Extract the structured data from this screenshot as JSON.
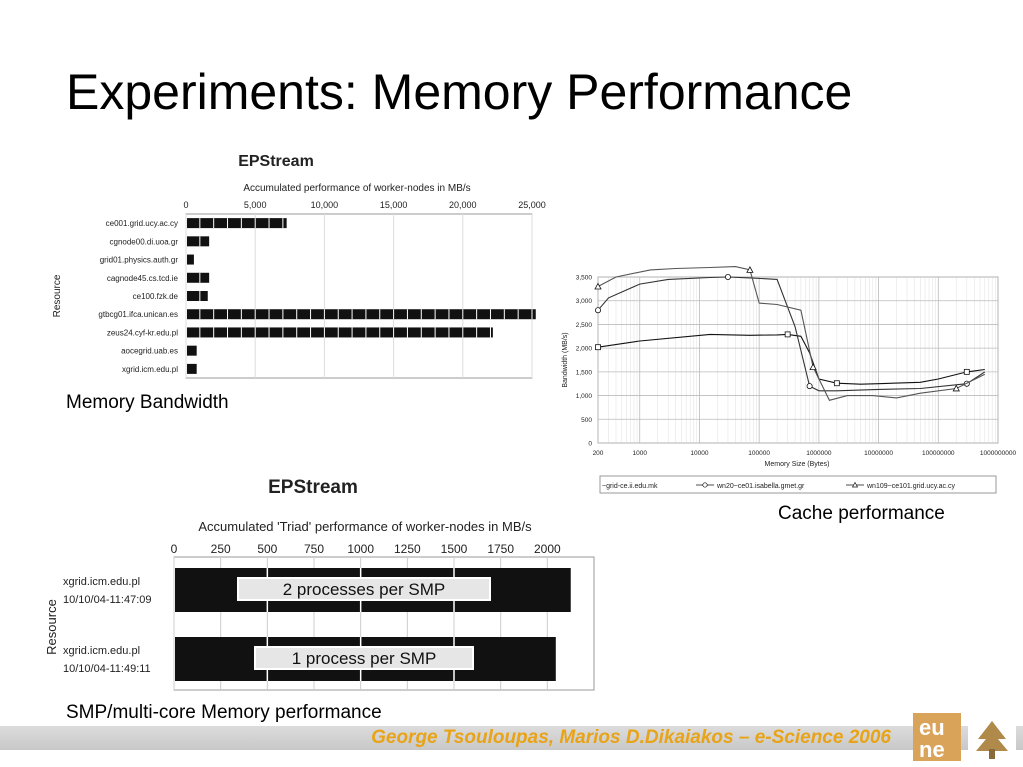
{
  "slide": {
    "title": "Experiments: Memory Performance",
    "captions": {
      "memory_bandwidth": "Memory Bandwidth",
      "cache_performance": "Cache performance",
      "smp": "SMP/multi-core Memory performance"
    },
    "footer": "George Tsouloupas, Marios D.Dikaiakos – e-Science 2006",
    "colors": {
      "footer_text": "#e8a317",
      "bar": "#111111"
    }
  },
  "chart_data": [
    {
      "type": "bar",
      "orientation": "horizontal",
      "title": "EPStream",
      "subtitle": "Accumulated performance of worker-nodes in MB/s",
      "ylabel": "Resource",
      "xlim": [
        0,
        25000
      ],
      "xticks": [
        "0",
        "5,000",
        "10,000",
        "15,000",
        "20,000",
        "25,000"
      ],
      "categories": [
        "ce001.grid.ucy.ac.cy",
        "cgnode00.di.uoa.gr",
        "grid01.physics.auth.gr",
        "cagnode45.cs.tcd.ie",
        "ce100.fzk.de",
        "gtbcg01.ifca.unican.es",
        "zeus24.cyf-kr.edu.pl",
        "aocegrid.uab.es",
        "xgrid.icm.edu.pl"
      ],
      "values": [
        7200,
        1600,
        500,
        1600,
        1500,
        25200,
        22100,
        700,
        700
      ]
    },
    {
      "type": "line",
      "ylabel": "Bandwidth (MB/s)",
      "xlabel": "Memory Size (Bytes)",
      "xscale": "log",
      "xlim": [
        200,
        1000000000
      ],
      "ylim": [
        0,
        3500
      ],
      "xticks": [
        "200",
        "1000",
        "10000",
        "100000",
        "1000000",
        "10000000",
        "100000000",
        "1000000000"
      ],
      "yticks": [
        "0",
        "500",
        "1,000",
        "1,500",
        "2,000",
        "2,500",
        "3,000",
        "3,500"
      ],
      "series": [
        {
          "name": "~grid-ce.ii.edu.mk",
          "marker": "square",
          "x": [
            200,
            1000,
            15000,
            70000,
            200000,
            300000,
            500000,
            700000,
            1000000,
            2000000,
            5000000,
            10000000,
            50000000,
            100000000,
            300000000,
            600000000
          ],
          "y": [
            2020,
            2150,
            2290,
            2270,
            2280,
            2290,
            2250,
            1900,
            1350,
            1260,
            1240,
            1250,
            1280,
            1350,
            1500,
            1550
          ]
        },
        {
          "name": "wn20~ce01.isabella.gmet.gr",
          "marker": "circle",
          "x": [
            200,
            300,
            1000,
            3000,
            15000,
            30000,
            70000,
            200000,
            400000,
            700000,
            1000000,
            2000000,
            10000000,
            50000000,
            300000000,
            600000000
          ],
          "y": [
            2800,
            3060,
            3350,
            3450,
            3490,
            3500,
            3480,
            3450,
            2450,
            1200,
            1100,
            1100,
            1130,
            1150,
            1250,
            1500
          ]
        },
        {
          "name": "wn109~ce101.grid.ucy.ac.cy",
          "marker": "triangle",
          "x": [
            200,
            400,
            1500,
            4000,
            15000,
            40000,
            70000,
            100000,
            200000,
            500000,
            800000,
            1500000,
            3000000,
            8000000,
            20000000,
            50000000,
            200000000,
            600000000
          ],
          "y": [
            3300,
            3500,
            3650,
            3680,
            3700,
            3720,
            3650,
            2950,
            2920,
            2800,
            1600,
            900,
            1000,
            1000,
            950,
            1050,
            1150,
            1450
          ]
        }
      ]
    },
    {
      "type": "bar",
      "orientation": "horizontal",
      "title": "EPStream",
      "subtitle": "Accumulated 'Triad' performance of worker-nodes in MB/s",
      "ylabel": "Resource",
      "xlim": [
        0,
        2250
      ],
      "xticks": [
        "0",
        "250",
        "500",
        "750",
        "1000",
        "1250",
        "1500",
        "1750",
        "2000"
      ],
      "categories": [
        "xgrid.icm.edu.pl\n10/10/04-11:47:09",
        "xgrid.icm.edu.pl\n10/10/04-11:49:11"
      ],
      "category_lines": [
        [
          "xgrid.icm.edu.pl",
          "10/10/04-11:47:09"
        ],
        [
          "xgrid.icm.edu.pl",
          "10/10/04-11:49:11"
        ]
      ],
      "values": [
        2120,
        2040
      ],
      "bar_labels": [
        "2 processes per SMP",
        "1 process per SMP"
      ]
    }
  ]
}
